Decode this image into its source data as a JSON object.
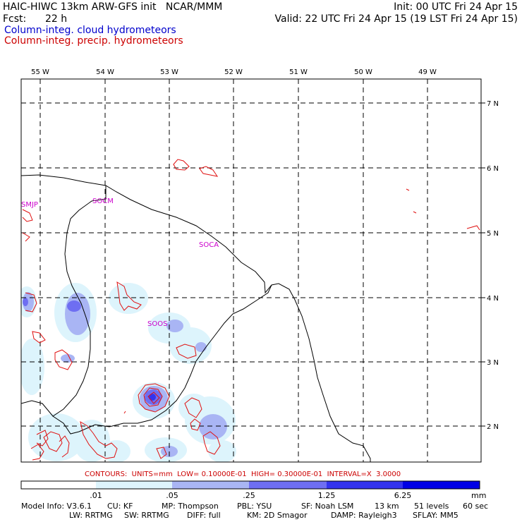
{
  "header": {
    "title_left": "HAIC-HIWC 13km ARW-GFS init   NCAR/MMM",
    "init": "Init: 00 UTC Fri 24 Apr 15",
    "fcst_label": "Fcst:",
    "fcst_value": "22 h",
    "valid": "Valid: 22 UTC Fri 24 Apr 15 (19 LST Fri 24 Apr 15)",
    "field1": "Column-integ. cloud hydrometeors",
    "field2": "Column-integ. precip. hydrometeors"
  },
  "map": {
    "lon_labels": [
      "55 W",
      "54 W",
      "53 W",
      "52 W",
      "51 W",
      "50 W",
      "49 W"
    ],
    "lat_labels": [
      "7 N",
      "6 N",
      "5 N",
      "4 N",
      "3 N",
      "2 N"
    ],
    "stations": [
      "SMJP",
      "SOCM",
      "SOCA",
      "SOOS"
    ]
  },
  "contours_line": "CONTOURS:  UNITS=mm  LOW= 0.10000E-01  HIGH= 0.30000E-01  INTERVAL=X  3.0000",
  "colorbar": {
    "labels": [
      ".01",
      ".05",
      ".25",
      "1.25",
      "6.25"
    ],
    "units": "mm",
    "colors": [
      "#ffffff",
      "#ddf4fc",
      "#a9b5f4",
      "#6e6ef2",
      "#3333ee",
      "#0000e6"
    ]
  },
  "footer": {
    "line1": {
      "model": "Model Info: V3.6.1",
      "cu": "CU: KF",
      "mp": "MP: Thompson",
      "pbl": "PBL: YSU",
      "sf": "SF: Noah LSM",
      "res": "13 km",
      "levels": "51 levels",
      "dt": "60 sec"
    },
    "line2": {
      "lw": "LW: RRTMG",
      "sw": "SW: RRTMG",
      "diff": "DIFF: full",
      "km": "KM: 2D Smagor",
      "damp": "DAMP: Rayleigh3",
      "sflay": "SFLAY: MM5"
    }
  }
}
